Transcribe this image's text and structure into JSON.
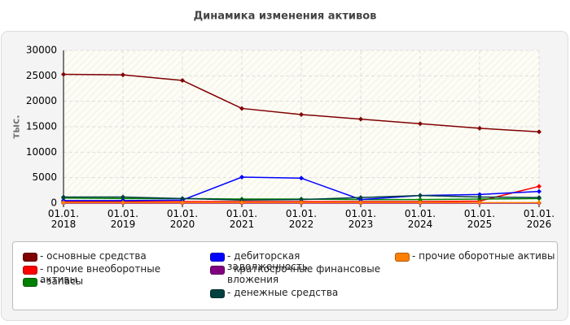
{
  "chart_data": {
    "type": "line",
    "title": "Динамика изменения активов",
    "y_label": "тыс.",
    "categories": [
      "01.01. 2018",
      "01.01. 2019",
      "01.01. 2020",
      "01.01. 2021",
      "01.01. 2022",
      "01.01. 2023",
      "01.01. 2024",
      "01.01. 2025",
      "01.01. 2026"
    ],
    "ylim": [
      0,
      30000
    ],
    "yticks": [
      0,
      5000,
      10000,
      15000,
      20000,
      25000,
      30000
    ],
    "grid": true,
    "series": [
      {
        "name": "- основные средства",
        "color": "#800000",
        "values": [
          25300,
          25200,
          24100,
          18600,
          17400,
          16500,
          15600,
          14700,
          14000
        ]
      },
      {
        "name": "- прочие внеоборотные активы",
        "color": "#ff0000",
        "values": [
          300,
          300,
          300,
          300,
          300,
          300,
          300,
          400,
          3300
        ]
      },
      {
        "name": "- запасы",
        "color": "#008000",
        "values": [
          1000,
          900,
          900,
          800,
          800,
          700,
          700,
          800,
          900
        ]
      },
      {
        "name": "- дебиторская задолженность",
        "color": "#0000ff",
        "values": [
          500,
          500,
          600,
          5100,
          4900,
          700,
          1500,
          1700,
          2300
        ]
      },
      {
        "name": "- краткосрочные финансовые вложения",
        "color": "#800080",
        "values": [
          0,
          0,
          0,
          0,
          0,
          0,
          0,
          0,
          0
        ]
      },
      {
        "name": "- денежные средства",
        "color": "#004040",
        "values": [
          1200,
          1200,
          900,
          600,
          700,
          1100,
          1500,
          1200,
          1100
        ]
      },
      {
        "name": "- прочие оборотные активы",
        "color": "#ff8000",
        "values": [
          100,
          100,
          100,
          100,
          100,
          100,
          100,
          100,
          100
        ]
      }
    ]
  }
}
